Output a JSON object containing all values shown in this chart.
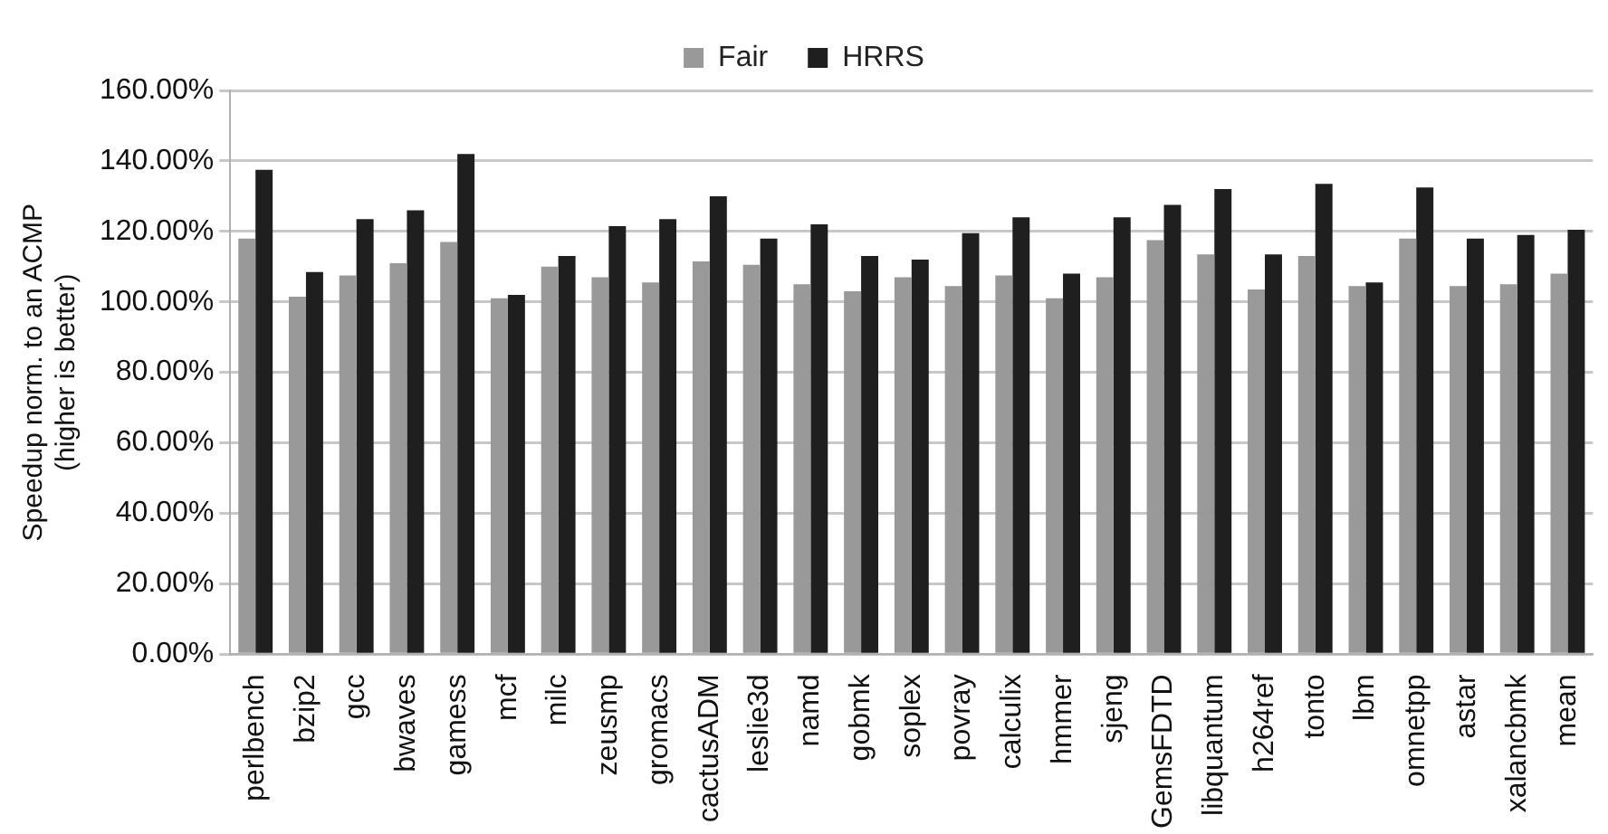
{
  "chart_data": {
    "type": "bar",
    "ylabel": "Speedup norm. to an ACMP\n(higher is better)",
    "categories": [
      "perlbench",
      "bzip2",
      "gcc",
      "bwaves",
      "gamess",
      "mcf",
      "milc",
      "zeusmp",
      "gromacs",
      "cactusADM",
      "leslie3d",
      "namd",
      "gobmk",
      "soplex",
      "povray",
      "calculix",
      "hmmer",
      "sjeng",
      "GemsFDTD",
      "libquantum",
      "h264ref",
      "tonto",
      "lbm",
      "omnetpp",
      "astar",
      "xalancbmk",
      "mean"
    ],
    "series": [
      {
        "name": "Fair",
        "color": "#999999",
        "values": [
          118,
          101.5,
          107.5,
          111,
          117,
          101,
          110,
          107,
          105.5,
          111.5,
          110.5,
          105,
          103,
          107,
          104.5,
          107.5,
          101,
          107,
          117.5,
          113.5,
          103.5,
          113,
          104.5,
          118,
          104.5,
          105,
          108
        ]
      },
      {
        "name": "HRRS",
        "color": "#1f1f1f",
        "values": [
          137.5,
          108.5,
          123.5,
          126,
          142,
          102,
          113,
          121.5,
          123.5,
          130,
          118,
          122,
          113,
          112,
          119.5,
          124,
          108,
          124,
          127.5,
          132,
          113.5,
          133.5,
          105.5,
          132.5,
          118,
          119,
          120.5
        ]
      }
    ],
    "ylim": [
      0,
      160
    ],
    "yticks": [
      {
        "value": 0,
        "label": "0.00%"
      },
      {
        "value": 20,
        "label": "20.00%"
      },
      {
        "value": 40,
        "label": "40.00%"
      },
      {
        "value": 60,
        "label": "60.00%"
      },
      {
        "value": 80,
        "label": "80.00%"
      },
      {
        "value": 100,
        "label": "100.00%"
      },
      {
        "value": 120,
        "label": "120.00%"
      },
      {
        "value": 140,
        "label": "140.00%"
      },
      {
        "value": 160,
        "label": "160.00%"
      }
    ],
    "grid": "y",
    "legend": "top"
  }
}
